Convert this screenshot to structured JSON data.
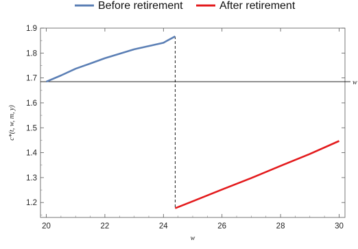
{
  "chart_data": {
    "type": "line",
    "xlabel": "w",
    "ylabel": "c*(t, w, m, y)",
    "xlim": [
      19.8,
      30.2
    ],
    "ylim": [
      1.14,
      1.9
    ],
    "x_ticks": [
      20,
      22,
      24,
      26,
      28,
      30
    ],
    "y_ticks": [
      1.2,
      1.3,
      1.4,
      1.5,
      1.6,
      1.7,
      1.8,
      1.9
    ],
    "x_tick_labels": [
      "20",
      "22",
      "24",
      "26",
      "28",
      "30"
    ],
    "y_tick_labels": [
      "1.2",
      "1.3",
      "1.4",
      "1.5",
      "1.6",
      "1.7",
      "1.8",
      "1.9"
    ],
    "legend_position": "top-center",
    "series": [
      {
        "name": "Before retirement",
        "color": "#5b7fb5",
        "x": [
          20.0,
          20.5,
          21.0,
          21.5,
          22.0,
          22.5,
          23.0,
          23.5,
          24.0,
          24.15,
          24.4
        ],
        "y": [
          1.685,
          1.71,
          1.737,
          1.758,
          1.779,
          1.797,
          1.815,
          1.828,
          1.841,
          1.851,
          1.867
        ]
      },
      {
        "name": "After retirement",
        "color": "#e31a1c",
        "x": [
          24.4,
          25.0,
          26.0,
          27.0,
          28.0,
          29.0,
          30.0
        ],
        "y": [
          1.177,
          1.205,
          1.252,
          1.298,
          1.347,
          1.395,
          1.447
        ]
      }
    ],
    "reference_lines": [
      {
        "orientation": "horizontal",
        "y": 1.685,
        "color": "#000000",
        "style": "solid",
        "label": "w"
      },
      {
        "orientation": "vertical",
        "x": 24.4,
        "color": "#000000",
        "style": "dashed"
      }
    ]
  }
}
